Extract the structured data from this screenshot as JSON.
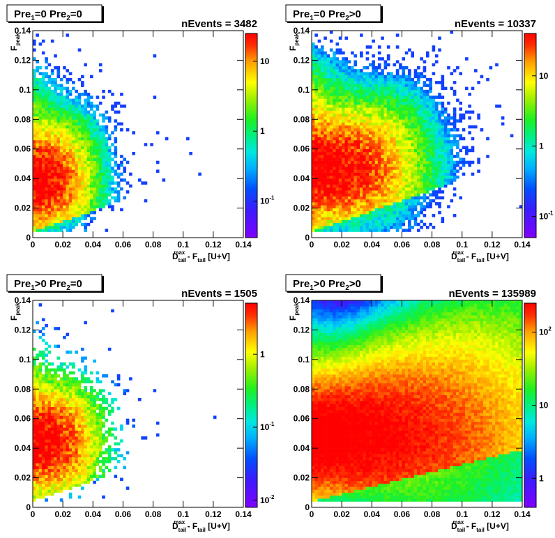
{
  "chart_data": [
    {
      "type": "heatmap",
      "title": "Pre₁=0 Pre₂=0",
      "title_parts": [
        "Pre",
        "1",
        "=0  Pre",
        "2",
        "=0"
      ],
      "events_label": "nEvents = 3482",
      "nEvents": 3482,
      "xlabel_parts": [
        "D",
        "tail",
        "max",
        " - F",
        "tail",
        " [U+V]"
      ],
      "ylabel_parts": [
        "F",
        "peak"
      ],
      "xlim": [
        0,
        0.14
      ],
      "ylim": [
        0,
        0.14
      ],
      "x_ticks": [
        "0",
        "0.02",
        "0.04",
        "0.06",
        "0.08",
        "0.1",
        "0.12",
        "0.14"
      ],
      "y_ticks": [
        "0",
        "0.02",
        "0.04",
        "0.06",
        "0.08",
        "0.1",
        "0.12",
        "0.14"
      ],
      "z_scale": "log",
      "z_range": [
        0.03,
        25
      ],
      "z_ticks": [
        {
          "value": 0.1,
          "label": "10-1",
          "base": "10",
          "exp": "-1"
        },
        {
          "value": 1,
          "label": "1"
        },
        {
          "value": 10,
          "label": "10"
        }
      ],
      "peak": {
        "x": 0.005,
        "y": 0.04
      },
      "peak_value": 25
    },
    {
      "type": "heatmap",
      "title": "Pre₁=0 Pre₂>0",
      "title_parts": [
        "Pre",
        "1",
        "=0  Pre",
        "2",
        ">0"
      ],
      "events_label": "nEvents = 10337",
      "nEvents": 10337,
      "xlabel_parts": [
        "D",
        "tail",
        "max",
        " - F",
        "tail",
        " [U+V]"
      ],
      "ylabel_parts": [
        "F",
        "peak"
      ],
      "xlim": [
        0,
        0.14
      ],
      "ylim": [
        0,
        0.14
      ],
      "x_ticks": [
        "0",
        "0.02",
        "0.04",
        "0.06",
        "0.08",
        "0.1",
        "0.12",
        "0.14"
      ],
      "y_ticks": [
        "0",
        "0.02",
        "0.04",
        "0.06",
        "0.08",
        "0.1",
        "0.12",
        "0.14"
      ],
      "z_scale": "log",
      "z_range": [
        0.05,
        40
      ],
      "z_ticks": [
        {
          "value": 0.1,
          "label": "10-1",
          "base": "10",
          "exp": "-1"
        },
        {
          "value": 1,
          "label": "1"
        },
        {
          "value": 10,
          "label": "10"
        }
      ],
      "peak": {
        "x": 0.015,
        "y": 0.047
      },
      "peak_value": 40
    },
    {
      "type": "heatmap",
      "title": "Pre₁>0 Pre₂=0",
      "title_parts": [
        "Pre",
        "1",
        ">0  Pre",
        "2",
        "=0"
      ],
      "events_label": "nEvents = 1505",
      "nEvents": 1505,
      "xlabel_parts": [
        "D",
        "tail",
        "max",
        " - F",
        "tail",
        " [U+V]"
      ],
      "ylabel_parts": [
        "F",
        "peak"
      ],
      "xlim": [
        0,
        0.14
      ],
      "ylim": [
        0,
        0.14
      ],
      "x_ticks": [
        "0",
        "0.02",
        "0.04",
        "0.06",
        "0.08",
        "0.1",
        "0.12",
        "0.14"
      ],
      "y_ticks": [
        "0",
        "0.02",
        "0.04",
        "0.06",
        "0.08",
        "0.1",
        "0.12",
        "0.14"
      ],
      "z_scale": "log",
      "z_range": [
        0.008,
        5
      ],
      "z_ticks": [
        {
          "value": 0.01,
          "label": "10-2",
          "base": "10",
          "exp": "-2"
        },
        {
          "value": 0.1,
          "label": "10-1",
          "base": "10",
          "exp": "-1"
        },
        {
          "value": 1,
          "label": "1"
        }
      ],
      "peak": {
        "x": 0.007,
        "y": 0.045
      },
      "peak_value": 5
    },
    {
      "type": "heatmap",
      "title": "Pre₁>0 Pre₂>0",
      "title_parts": [
        "Pre",
        "1",
        ">0  Pre",
        "2",
        ">0"
      ],
      "events_label": "nEvents = 135989",
      "nEvents": 135989,
      "xlabel_parts": [
        "D",
        "tail",
        "max",
        " - F",
        "tail",
        " [U+V]"
      ],
      "ylabel_parts": [
        "F",
        "peak"
      ],
      "xlim": [
        0,
        0.14
      ],
      "ylim": [
        0,
        0.14
      ],
      "x_ticks": [
        "0",
        "0.02",
        "0.04",
        "0.06",
        "0.08",
        "0.1",
        "0.12",
        "0.14"
      ],
      "y_ticks": [
        "0",
        "0.02",
        "0.04",
        "0.06",
        "0.08",
        "0.1",
        "0.12",
        "0.14"
      ],
      "z_scale": "log",
      "z_range": [
        0.4,
        250
      ],
      "z_ticks": [
        {
          "value": 1,
          "label": "1"
        },
        {
          "value": 10,
          "label": "10"
        },
        {
          "value": 100,
          "label": "102",
          "base": "10",
          "exp": "2"
        }
      ],
      "peak": {
        "x": 0.025,
        "y": 0.048
      },
      "peak_value": 250
    }
  ]
}
